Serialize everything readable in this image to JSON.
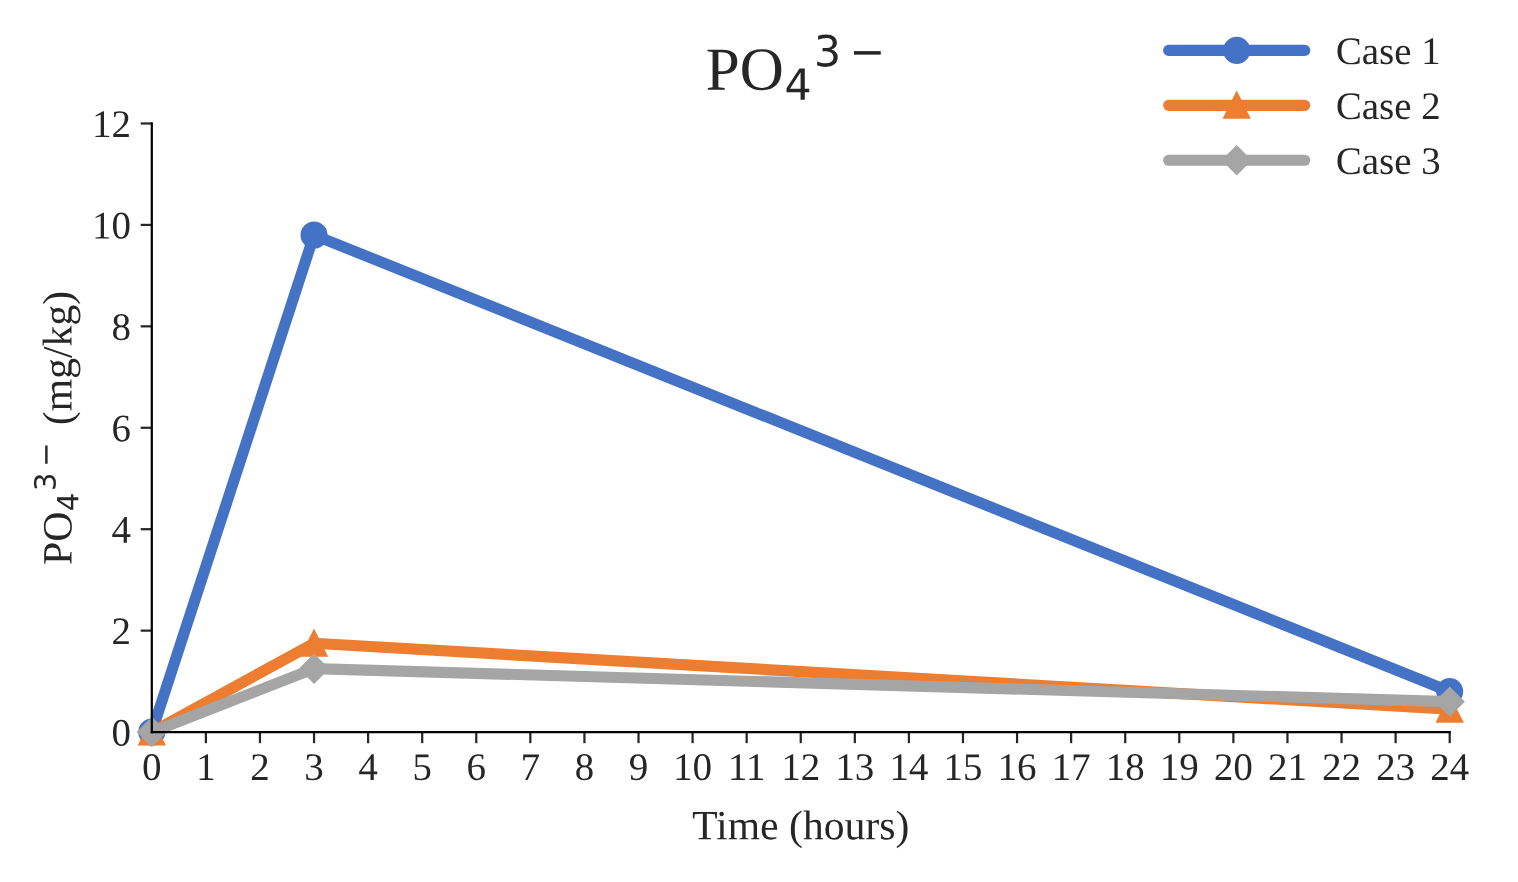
{
  "chart_data": {
    "type": "line",
    "title": "PO$_{4}$$^{3−}$",
    "xlabel": "Time (hours)",
    "ylabel": "PO$_{4}$$^{3−}$ (mg/kg)",
    "x": [
      0,
      3,
      24
    ],
    "series": [
      {
        "name": "Case 1",
        "color": "#4472c4",
        "marker": "circle",
        "values": [
          0,
          9.8,
          0.8
        ]
      },
      {
        "name": "Case 2",
        "color": "#ed7d31",
        "marker": "triangle",
        "values": [
          0,
          1.75,
          0.45
        ]
      },
      {
        "name": "Case 3",
        "color": "#a5a5a5",
        "marker": "diamond",
        "values": [
          0,
          1.25,
          0.6
        ]
      }
    ],
    "xlim": [
      0,
      24
    ],
    "xticks": [
      0,
      1,
      2,
      3,
      4,
      5,
      6,
      7,
      8,
      9,
      10,
      11,
      12,
      13,
      14,
      15,
      16,
      17,
      18,
      19,
      20,
      21,
      22,
      23,
      24
    ],
    "ylim": [
      0,
      12
    ],
    "yticks": [
      0,
      2,
      4,
      6,
      8,
      10,
      12
    ],
    "grid": false,
    "legend": "top right",
    "line_style": "solid"
  }
}
